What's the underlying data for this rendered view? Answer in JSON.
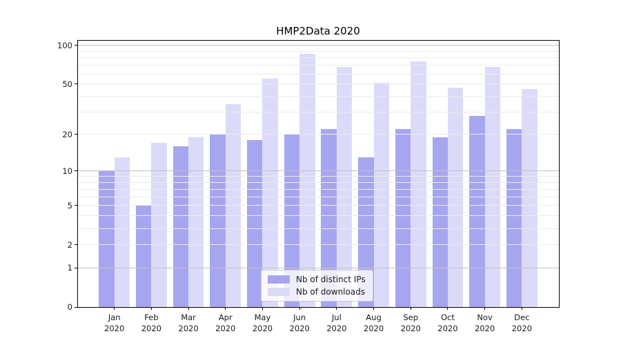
{
  "title": "HMP2Data 2020",
  "chart_data": {
    "type": "bar",
    "title": "HMP2Data 2020",
    "categories": [
      "Jan",
      "Feb",
      "Mar",
      "Apr",
      "May",
      "Jun",
      "Jul",
      "Aug",
      "Sep",
      "Oct",
      "Nov",
      "Dec"
    ],
    "year": "2020",
    "series": [
      {
        "name": "Nb of distinct IPs",
        "color": "#a6a6f0",
        "values": [
          10,
          5,
          16,
          20,
          18,
          20,
          22,
          13,
          22,
          19,
          28,
          22
        ]
      },
      {
        "name": "Nb of downloads",
        "color": "#dbdbf9",
        "values": [
          13,
          17,
          19,
          35,
          55,
          86,
          68,
          51,
          75,
          47,
          68,
          46
        ]
      }
    ],
    "xlabel": "",
    "ylabel": "",
    "yscale": "log1p",
    "ylim": [
      0,
      110
    ],
    "ytick_labels": [
      0,
      1,
      2,
      5,
      10,
      20,
      50,
      100
    ],
    "gridlines_major": [
      1,
      10,
      100
    ],
    "gridlines_minor": [
      2,
      3,
      4,
      5,
      6,
      7,
      8,
      9,
      20,
      30,
      40,
      50,
      60,
      70,
      80,
      90
    ],
    "grid": "horizontal",
    "legend_position": "lower-center",
    "colors": {
      "grid_major": "#c2c2c2",
      "grid_minor": "#ebebeb",
      "axis": "#000000",
      "text": "#1a1a1a"
    }
  }
}
